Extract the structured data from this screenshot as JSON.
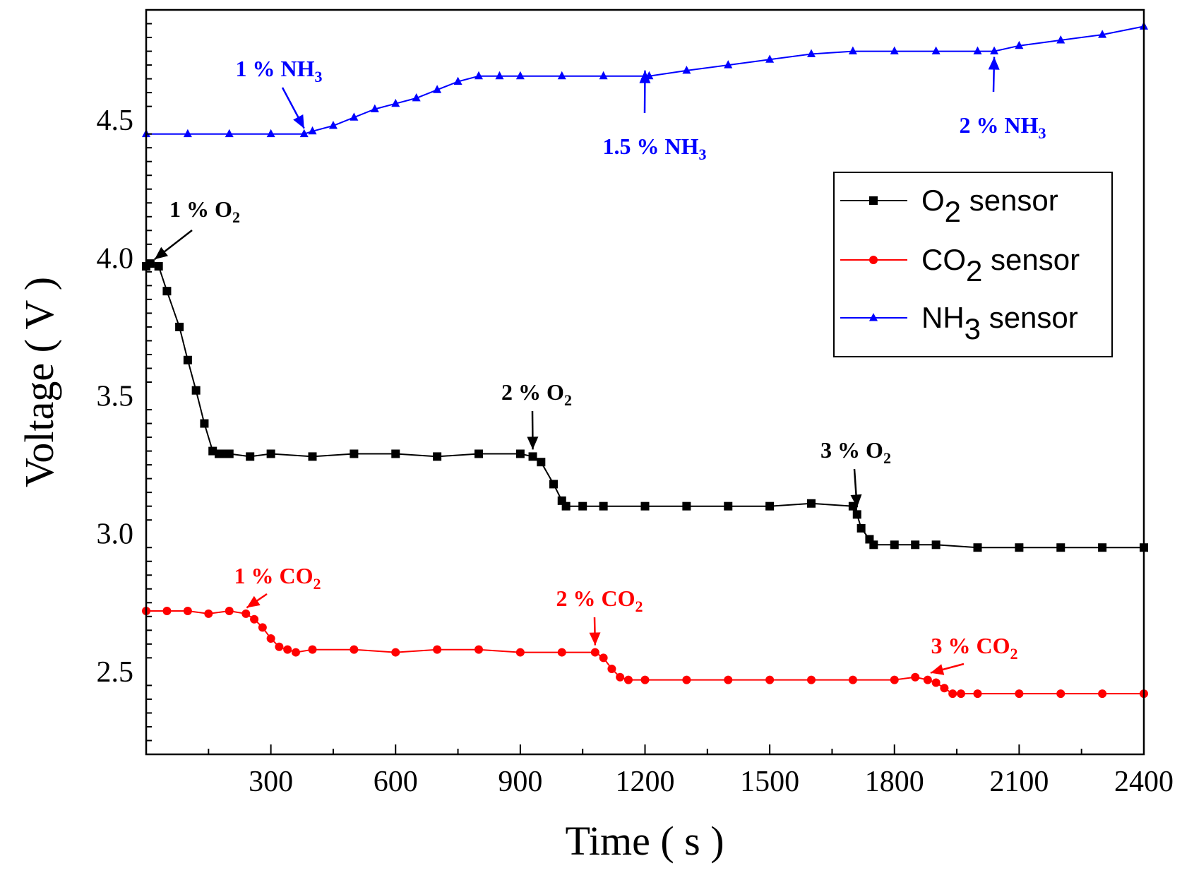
{
  "chart_data": {
    "type": "line",
    "xlabel": "Time ( s )",
    "ylabel": "Voltage ( V )",
    "xlim": [
      0,
      2400
    ],
    "ylim": [
      2.2,
      4.9
    ],
    "xticks": [
      300,
      600,
      900,
      1200,
      1500,
      1800,
      2100,
      2400
    ],
    "xtick_labels": [
      "300",
      "600",
      "900",
      "1200",
      "1500",
      "1800",
      "2100",
      "2400"
    ],
    "yticks": [
      2.5,
      3.0,
      3.5,
      4.0,
      4.5
    ],
    "ytick_labels": [
      "2.5",
      "3.0",
      "3.5",
      "4.0",
      "4.5"
    ],
    "grid": false,
    "legend_position": "top-right",
    "series": [
      {
        "name": "O2 sensor",
        "legend_main": "O",
        "legend_sub": "2",
        "legend_suffix": " sensor",
        "color": "#000000",
        "marker": "square",
        "x": [
          0,
          10,
          30,
          50,
          80,
          100,
          120,
          140,
          160,
          175,
          180,
          200,
          250,
          300,
          400,
          500,
          600,
          700,
          800,
          900,
          930,
          950,
          980,
          1000,
          1010,
          1050,
          1100,
          1200,
          1300,
          1400,
          1500,
          1600,
          1700,
          1710,
          1720,
          1740,
          1750,
          1800,
          1850,
          1900,
          2000,
          2100,
          2200,
          2300,
          2400
        ],
        "y": [
          3.97,
          3.98,
          3.97,
          3.88,
          3.75,
          3.63,
          3.52,
          3.4,
          3.3,
          3.29,
          3.29,
          3.29,
          3.28,
          3.29,
          3.28,
          3.29,
          3.29,
          3.28,
          3.29,
          3.29,
          3.28,
          3.26,
          3.18,
          3.12,
          3.1,
          3.1,
          3.1,
          3.1,
          3.1,
          3.1,
          3.1,
          3.11,
          3.1,
          3.07,
          3.02,
          2.98,
          2.96,
          2.96,
          2.96,
          2.96,
          2.95,
          2.95,
          2.95,
          2.95,
          2.95
        ]
      },
      {
        "name": "CO2 sensor",
        "legend_main": "CO",
        "legend_sub": "2",
        "legend_suffix": " sensor",
        "color": "#ff0000",
        "marker": "circle",
        "x": [
          0,
          50,
          100,
          150,
          200,
          240,
          260,
          280,
          300,
          320,
          340,
          360,
          400,
          500,
          600,
          700,
          800,
          900,
          1000,
          1080,
          1100,
          1120,
          1140,
          1160,
          1200,
          1300,
          1400,
          1500,
          1600,
          1700,
          1800,
          1850,
          1880,
          1900,
          1920,
          1940,
          1960,
          2000,
          2100,
          2200,
          2300,
          2400
        ],
        "y": [
          2.72,
          2.72,
          2.72,
          2.71,
          2.72,
          2.71,
          2.69,
          2.66,
          2.62,
          2.59,
          2.58,
          2.57,
          2.58,
          2.58,
          2.57,
          2.58,
          2.58,
          2.57,
          2.57,
          2.57,
          2.55,
          2.51,
          2.48,
          2.47,
          2.47,
          2.47,
          2.47,
          2.47,
          2.47,
          2.47,
          2.47,
          2.48,
          2.47,
          2.46,
          2.44,
          2.42,
          2.42,
          2.42,
          2.42,
          2.42,
          2.42,
          2.42
        ]
      },
      {
        "name": "NH3 sensor",
        "legend_main": "NH",
        "legend_sub": "3",
        "legend_suffix": " sensor",
        "color": "#0000ff",
        "marker": "triangle",
        "x": [
          0,
          100,
          200,
          300,
          380,
          400,
          450,
          500,
          550,
          600,
          650,
          700,
          750,
          800,
          850,
          900,
          1000,
          1100,
          1200,
          1210,
          1300,
          1400,
          1500,
          1600,
          1700,
          1800,
          1900,
          2000,
          2040,
          2100,
          2200,
          2300,
          2400
        ],
        "y": [
          4.45,
          4.45,
          4.45,
          4.45,
          4.45,
          4.46,
          4.48,
          4.51,
          4.54,
          4.56,
          4.58,
          4.61,
          4.64,
          4.66,
          4.66,
          4.66,
          4.66,
          4.66,
          4.66,
          4.66,
          4.68,
          4.7,
          4.72,
          4.74,
          4.75,
          4.75,
          4.75,
          4.75,
          4.75,
          4.77,
          4.79,
          4.81,
          4.84
        ]
      }
    ],
    "annotations": [
      {
        "main": "1 % NH",
        "sub": "3",
        "color": "#0000ff",
        "series": 2,
        "x": 380
      },
      {
        "main": "1.5 % NH",
        "sub": "3",
        "color": "#0000ff",
        "series": 2,
        "x": 1200
      },
      {
        "main": "2 % NH",
        "sub": "3",
        "color": "#0000ff",
        "series": 2,
        "x": 2040
      },
      {
        "main": "1 % O",
        "sub": "2",
        "color": "#000000",
        "series": 0,
        "x": 10
      },
      {
        "main": "2 % O",
        "sub": "2",
        "color": "#000000",
        "series": 0,
        "x": 930
      },
      {
        "main": "3 % O",
        "sub": "2",
        "color": "#000000",
        "series": 0,
        "x": 1710
      },
      {
        "main": "1 % CO",
        "sub": "2",
        "color": "#ff0000",
        "series": 1,
        "x": 235
      },
      {
        "main": "2 % CO",
        "sub": "2",
        "color": "#ff0000",
        "series": 1,
        "x": 1080
      },
      {
        "main": "3 % CO",
        "sub": "2",
        "color": "#ff0000",
        "series": 1,
        "x": 1880
      }
    ]
  }
}
